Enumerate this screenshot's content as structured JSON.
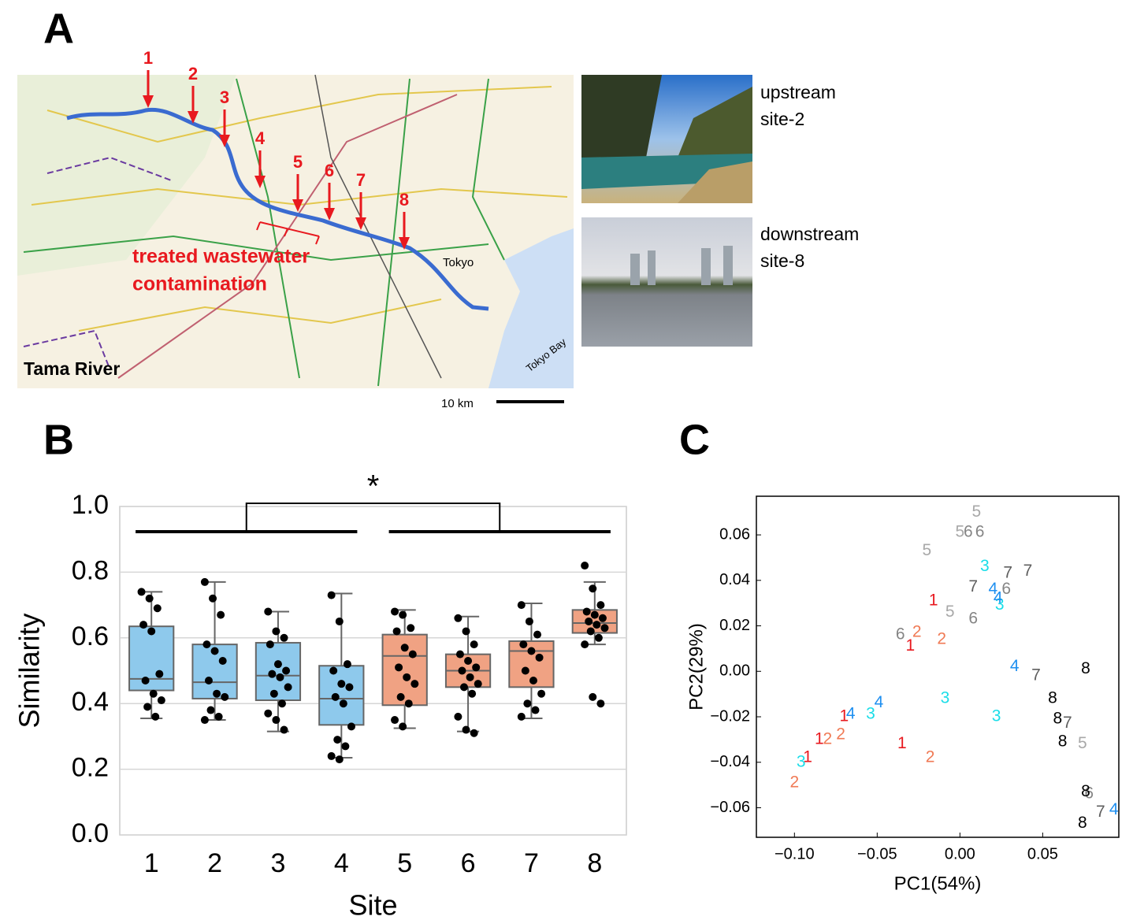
{
  "panels": {
    "a": "A",
    "b": "B",
    "c": "C"
  },
  "map": {
    "site_labels": [
      "1",
      "2",
      "3",
      "4",
      "5",
      "6",
      "7",
      "8"
    ],
    "annotation": [
      "treated wastewater",
      "contamination"
    ],
    "river_name": "Tama River",
    "places": [
      "Tokyo",
      "Tokyo Bay"
    ],
    "scale": "10 km",
    "photos": [
      {
        "caption": [
          "upstream",
          "site-2"
        ]
      },
      {
        "caption": [
          "downstream",
          "site-8"
        ]
      }
    ]
  },
  "chart_data": [
    {
      "type": "box",
      "xlabel": "Site",
      "ylabel": "Similarity",
      "annotation": "*",
      "categories": [
        "1",
        "2",
        "3",
        "4",
        "5",
        "6",
        "7",
        "8"
      ],
      "box_colors": [
        "#8ec9ec",
        "#8ec9ec",
        "#8ec9ec",
        "#8ec9ec",
        "#f0a283",
        "#f0a283",
        "#f0a283",
        "#f0a283"
      ],
      "ylim": [
        0,
        1.0
      ],
      "yticks": [
        {
          "value": 0,
          "label": "0.0"
        },
        {
          "value": 0.2,
          "label": "0.2"
        },
        {
          "value": 0.4,
          "label": "0.4"
        },
        {
          "value": 0.6,
          "label": "0.6"
        },
        {
          "value": 0.8,
          "label": "0.8"
        },
        {
          "value": 1.0,
          "label": "1.0"
        }
      ],
      "grid": true,
      "boxes": [
        {
          "whisker_low": 0.355,
          "q1": 0.44,
          "median": 0.475,
          "q3": 0.635,
          "whisker_high": 0.74
        },
        {
          "whisker_low": 0.35,
          "q1": 0.415,
          "median": 0.465,
          "q3": 0.58,
          "whisker_high": 0.77
        },
        {
          "whisker_low": 0.315,
          "q1": 0.41,
          "median": 0.485,
          "q3": 0.585,
          "whisker_high": 0.68
        },
        {
          "whisker_low": 0.235,
          "q1": 0.335,
          "median": 0.415,
          "q3": 0.515,
          "whisker_high": 0.735
        },
        {
          "whisker_low": 0.325,
          "q1": 0.395,
          "median": 0.545,
          "q3": 0.61,
          "whisker_high": 0.685
        },
        {
          "whisker_low": 0.315,
          "q1": 0.45,
          "median": 0.5,
          "q3": 0.55,
          "whisker_high": 0.665
        },
        {
          "whisker_low": 0.355,
          "q1": 0.45,
          "median": 0.56,
          "q3": 0.59,
          "whisker_high": 0.705
        },
        {
          "whisker_low": 0.58,
          "q1": 0.615,
          "median": 0.645,
          "q3": 0.685,
          "whisker_high": 0.77
        }
      ],
      "points": [
        [
          0.74,
          0.72,
          0.69,
          0.64,
          0.62,
          0.49,
          0.47,
          0.43,
          0.41,
          0.39,
          0.36
        ],
        [
          0.77,
          0.72,
          0.67,
          0.58,
          0.56,
          0.53,
          0.47,
          0.43,
          0.42,
          0.38,
          0.36,
          0.35
        ],
        [
          0.68,
          0.62,
          0.6,
          0.58,
          0.52,
          0.5,
          0.49,
          0.48,
          0.45,
          0.43,
          0.4,
          0.37,
          0.35,
          0.32
        ],
        [
          0.73,
          0.65,
          0.52,
          0.5,
          0.46,
          0.45,
          0.42,
          0.4,
          0.33,
          0.29,
          0.27,
          0.24,
          0.23
        ],
        [
          0.68,
          0.67,
          0.63,
          0.62,
          0.57,
          0.55,
          0.51,
          0.48,
          0.46,
          0.42,
          0.4,
          0.35,
          0.33
        ],
        [
          0.66,
          0.62,
          0.58,
          0.55,
          0.53,
          0.51,
          0.5,
          0.48,
          0.46,
          0.45,
          0.43,
          0.36,
          0.32,
          0.31
        ],
        [
          0.7,
          0.65,
          0.61,
          0.58,
          0.56,
          0.54,
          0.5,
          0.47,
          0.43,
          0.4,
          0.38,
          0.36
        ],
        [
          0.82,
          0.75,
          0.7,
          0.68,
          0.67,
          0.66,
          0.65,
          0.64,
          0.63,
          0.62,
          0.6,
          0.58,
          0.42,
          0.4
        ]
      ]
    },
    {
      "type": "scatter",
      "xlabel": "PC1(54%)",
      "ylabel": "PC2(29%)",
      "xlim": [
        -0.123,
        0.096
      ],
      "ylim": [
        -0.073,
        0.077
      ],
      "xticks": [
        {
          "value": -0.1,
          "label": "−0.10"
        },
        {
          "value": -0.05,
          "label": "−0.05"
        },
        {
          "value": 0,
          "label": "0.00"
        },
        {
          "value": 0.05,
          "label": "0.05"
        }
      ],
      "yticks": [
        {
          "value": -0.06,
          "label": "−0.06"
        },
        {
          "value": -0.04,
          "label": "−0.04"
        },
        {
          "value": -0.02,
          "label": "−0.02"
        },
        {
          "value": 0,
          "label": "0.00"
        },
        {
          "value": 0.02,
          "label": "0.02"
        },
        {
          "value": 0.04,
          "label": "0.04"
        },
        {
          "value": 0.06,
          "label": "0.06"
        }
      ],
      "series": [
        {
          "name": "1",
          "color": "#e8191f",
          "x": [
            -0.016,
            -0.03,
            -0.035,
            -0.07,
            -0.085,
            -0.092
          ],
          "values": [
            0.031,
            0.011,
            -0.032,
            -0.02,
            -0.03,
            -0.038
          ]
        },
        {
          "name": "2",
          "color": "#f07a55",
          "x": [
            -0.026,
            -0.011,
            -0.018,
            -0.08,
            -0.072,
            -0.1
          ],
          "values": [
            0.017,
            0.014,
            -0.038,
            -0.03,
            -0.028,
            -0.049
          ]
        },
        {
          "name": "3",
          "color": "#19dde8",
          "x": [
            0.015,
            0.024,
            -0.009,
            0.022,
            -0.054,
            -0.096
          ],
          "values": [
            0.046,
            0.029,
            -0.012,
            -0.02,
            -0.019,
            -0.04
          ]
        },
        {
          "name": "4",
          "color": "#1e8ff0",
          "x": [
            0.02,
            0.023,
            0.033,
            -0.049,
            -0.066,
            0.093
          ],
          "values": [
            0.036,
            0.032,
            0.002,
            -0.014,
            -0.019,
            -0.061
          ]
        },
        {
          "name": "5",
          "color": "#a8a8a8",
          "x": [
            0.01,
            0.0,
            -0.02,
            -0.006,
            0.074
          ],
          "values": [
            0.07,
            0.061,
            0.053,
            0.026,
            -0.032
          ]
        },
        {
          "name": "6",
          "color": "#858585",
          "x": [
            0.005,
            0.012,
            0.028,
            0.008,
            -0.036,
            0.078
          ],
          "values": [
            0.061,
            0.061,
            0.036,
            0.023,
            0.016,
            -0.054
          ]
        },
        {
          "name": "7",
          "color": "#5f5f5f",
          "x": [
            0.029,
            0.041,
            0.008,
            0.046,
            0.065,
            0.085
          ],
          "values": [
            0.043,
            0.044,
            0.037,
            -0.002,
            -0.023,
            -0.062
          ]
        },
        {
          "name": "8",
          "color": "#000000",
          "x": [
            0.076,
            0.056,
            0.059,
            0.062,
            0.076,
            0.074
          ],
          "values": [
            0.001,
            -0.012,
            -0.021,
            -0.031,
            -0.053,
            -0.067
          ]
        }
      ]
    }
  ]
}
